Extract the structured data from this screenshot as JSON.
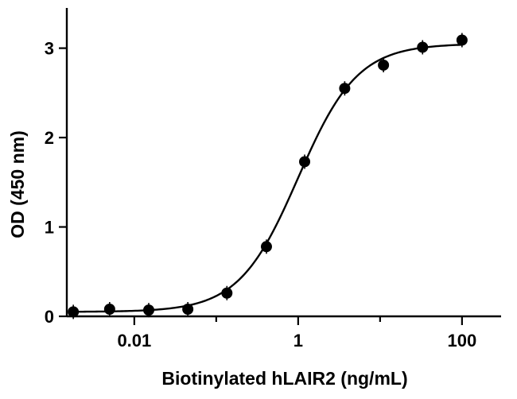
{
  "chart_data": {
    "type": "scatter",
    "title": "",
    "xlabel": "Biotinylated hLAIR2 (ng/mL)",
    "ylabel": "OD (450 nm)",
    "x_scale": "log",
    "xlim": [
      0.0015,
      300
    ],
    "ylim": [
      0,
      3.45
    ],
    "x_major_ticks": [
      0.01,
      1,
      100
    ],
    "x_tick_labels": [
      "0.01",
      "1",
      "100"
    ],
    "y_ticks": [
      0,
      1,
      2,
      3
    ],
    "y_tick_labels": [
      "0",
      "1",
      "2",
      "3"
    ],
    "grid": false,
    "legend": "none",
    "series": [
      {
        "x": [
          0.0018,
          0.005,
          0.015,
          0.045,
          0.135,
          0.41,
          1.2,
          3.7,
          11,
          33,
          100
        ],
        "y": [
          0.05,
          0.08,
          0.07,
          0.08,
          0.26,
          0.78,
          1.73,
          2.55,
          2.81,
          3.01,
          3.09
        ]
      }
    ],
    "fit_curve": {
      "model": "4PL",
      "bottom": 0.05,
      "top": 3.05,
      "ec50": 1.0,
      "hill": 1.2
    }
  }
}
